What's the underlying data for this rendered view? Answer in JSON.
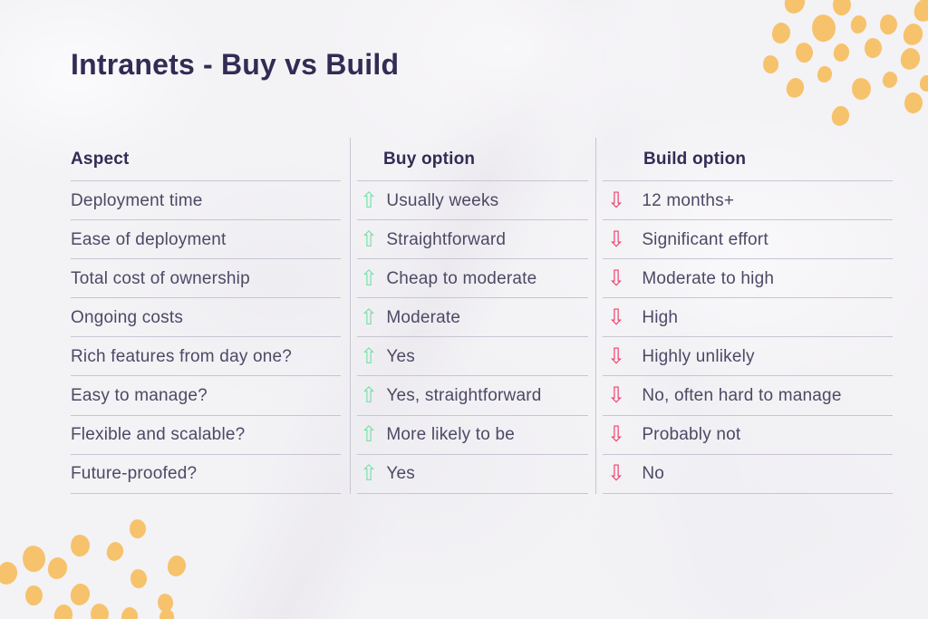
{
  "title": "Intranets - Buy vs Build",
  "table": {
    "headers": [
      "Aspect",
      "Buy option",
      "Build option"
    ],
    "rows": [
      {
        "aspect": "Deployment time",
        "buy": "Usually weeks",
        "build": "12 months+"
      },
      {
        "aspect": "Ease of deployment",
        "buy": "Straightforward",
        "build": "Significant effort"
      },
      {
        "aspect": "Total cost of ownership",
        "buy": "Cheap to moderate",
        "build": "Moderate to high"
      },
      {
        "aspect": "Ongoing costs",
        "buy": "Moderate",
        "build": "High"
      },
      {
        "aspect": "Rich features from day one?",
        "buy": "Yes",
        "build": "Highly unlikely"
      },
      {
        "aspect": "Easy to manage?",
        "buy": "Yes, straightforward",
        "build": "No, often hard to manage"
      },
      {
        "aspect": "Flexible and scalable?",
        "buy": "More likely to be",
        "build": "Probably not"
      },
      {
        "aspect": "Future-proofed?",
        "buy": "Yes",
        "build": "No"
      }
    ]
  },
  "icons": {
    "up_arrow": {
      "name": "up-arrow-icon",
      "glyph": "⇧"
    },
    "down_arrow": {
      "name": "down-arrow-icon",
      "glyph": "⇩"
    }
  },
  "colors": {
    "heading": "#322c55",
    "body_text": "#4d4965",
    "divider": "#c7c5d2",
    "up_arrow": "#79e2a9",
    "down_arrow": "#f2406e",
    "accent_yellow": "#f6c26b",
    "paper": "#f3f2f5"
  }
}
